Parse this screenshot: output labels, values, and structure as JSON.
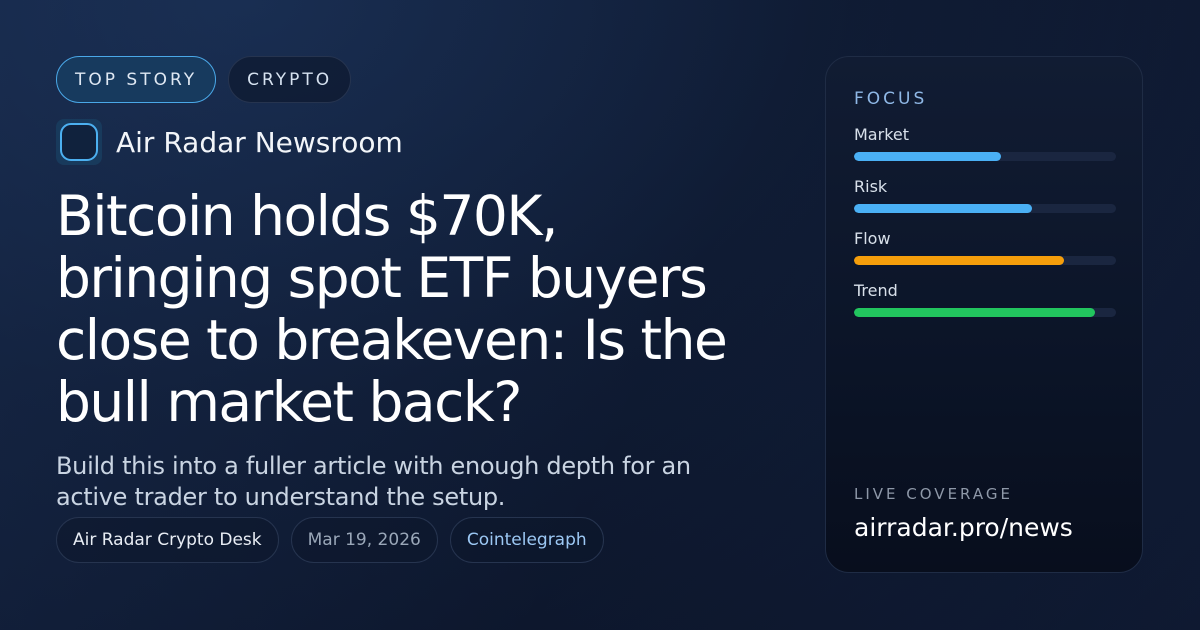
{
  "tags": [
    {
      "label": "TOP STORY",
      "primary": true
    },
    {
      "label": "CRYPTO",
      "primary": false
    }
  ],
  "brand": {
    "name": "Air Radar Newsroom",
    "icon": "rounded-square-logo-icon"
  },
  "headline": "Bitcoin holds $70K, bringing spot ETF buyers close to breakeven: Is the bull market back?",
  "dek": "Build this into a fuller article with enough depth for an active trader to understand the setup.",
  "meta": {
    "author": "Air Radar Crypto Desk",
    "date": "Mar 19, 2026",
    "source": "Cointelegraph"
  },
  "focus_panel": {
    "title": "FOCUS",
    "metrics": [
      {
        "label": "Market",
        "percent": 56,
        "color": "#4ab0f5"
      },
      {
        "label": "Risk",
        "percent": 68,
        "color": "#4ab0f5"
      },
      {
        "label": "Flow",
        "percent": 80,
        "color": "#f59e0b"
      },
      {
        "label": "Trend",
        "percent": 92,
        "color": "#22c55e"
      }
    ],
    "live_label": "LIVE COVERAGE",
    "live_url": "airradar.pro/news"
  }
}
